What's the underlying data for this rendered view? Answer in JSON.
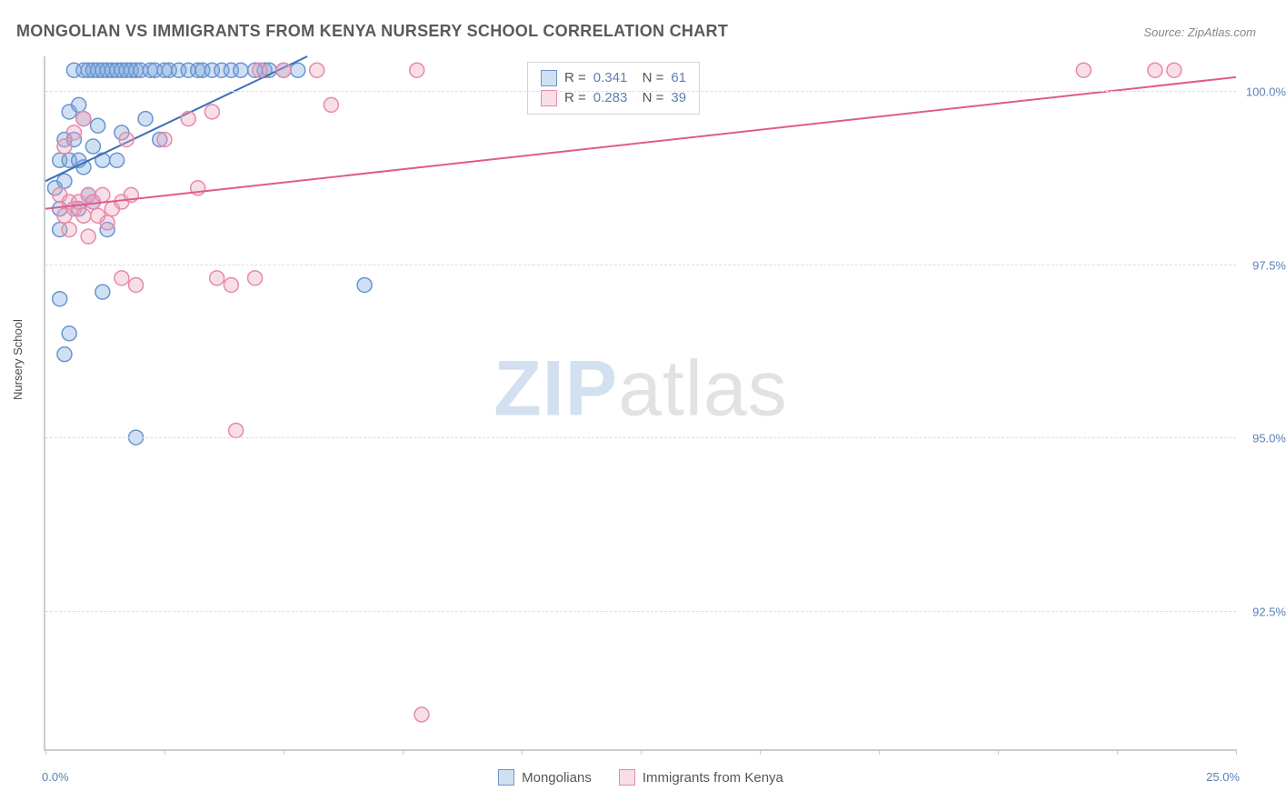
{
  "title": "MONGOLIAN VS IMMIGRANTS FROM KENYA NURSERY SCHOOL CORRELATION CHART",
  "source": "Source: ZipAtlas.com",
  "watermark": {
    "zip": "ZIP",
    "atlas": "atlas"
  },
  "chart": {
    "type": "scatter",
    "background_color": "#ffffff",
    "grid_color": "#dadde2",
    "axis_color": "#c7ccd4",
    "y_axis_title": "Nursery School",
    "title_fontsize": 18,
    "label_fontsize": 13,
    "xlim": [
      0.0,
      25.0
    ],
    "ylim": [
      90.5,
      100.5
    ],
    "x_ticks": [
      0.0,
      2.5,
      5.0,
      7.5,
      10.0,
      12.5,
      15.0,
      17.5,
      20.0,
      22.5,
      25.0
    ],
    "x_tick_labels": {
      "start": "0.0%",
      "end": "25.0%"
    },
    "y_ticks": [
      92.5,
      95.0,
      97.5,
      100.0
    ],
    "y_tick_labels": [
      "92.5%",
      "95.0%",
      "97.5%",
      "100.0%"
    ],
    "marker_radius": 8,
    "marker_stroke_width": 1.5,
    "line_width": 2,
    "series": [
      {
        "name": "Mongolians",
        "color_fill": "rgba(120,165,220,0.35)",
        "color_stroke": "#6a94cf",
        "line_color": "#3b6fb8",
        "R": "0.341",
        "N": "61",
        "regression": {
          "x1": 0.0,
          "y1": 98.7,
          "x2": 5.5,
          "y2": 100.5
        },
        "points": [
          [
            0.2,
            98.6
          ],
          [
            0.3,
            99.0
          ],
          [
            0.3,
            98.3
          ],
          [
            0.4,
            99.3
          ],
          [
            0.4,
            98.7
          ],
          [
            0.5,
            99.7
          ],
          [
            0.5,
            99.0
          ],
          [
            0.6,
            100.3
          ],
          [
            0.6,
            99.3
          ],
          [
            0.7,
            99.0
          ],
          [
            0.7,
            98.3
          ],
          [
            0.8,
            100.3
          ],
          [
            0.8,
            99.6
          ],
          [
            0.9,
            100.3
          ],
          [
            0.9,
            98.5
          ],
          [
            1.0,
            100.3
          ],
          [
            1.0,
            99.2
          ],
          [
            1.1,
            100.3
          ],
          [
            1.1,
            99.5
          ],
          [
            1.2,
            100.3
          ],
          [
            1.2,
            99.0
          ],
          [
            1.3,
            100.3
          ],
          [
            1.3,
            98.0
          ],
          [
            1.4,
            100.3
          ],
          [
            1.5,
            100.3
          ],
          [
            1.5,
            99.0
          ],
          [
            1.6,
            100.3
          ],
          [
            1.6,
            99.4
          ],
          [
            1.7,
            100.3
          ],
          [
            1.8,
            100.3
          ],
          [
            1.9,
            100.3
          ],
          [
            2.0,
            100.3
          ],
          [
            2.1,
            99.6
          ],
          [
            2.2,
            100.3
          ],
          [
            2.3,
            100.3
          ],
          [
            2.4,
            99.3
          ],
          [
            2.5,
            100.3
          ],
          [
            2.6,
            100.3
          ],
          [
            2.8,
            100.3
          ],
          [
            3.0,
            100.3
          ],
          [
            3.2,
            100.3
          ],
          [
            3.3,
            100.3
          ],
          [
            3.5,
            100.3
          ],
          [
            3.7,
            100.3
          ],
          [
            3.9,
            100.3
          ],
          [
            4.1,
            100.3
          ],
          [
            4.4,
            100.3
          ],
          [
            4.6,
            100.3
          ],
          [
            4.7,
            100.3
          ],
          [
            5.0,
            100.3
          ],
          [
            5.3,
            100.3
          ],
          [
            0.3,
            97.0
          ],
          [
            0.5,
            96.5
          ],
          [
            0.4,
            96.2
          ],
          [
            0.3,
            98.0
          ],
          [
            1.2,
            97.1
          ],
          [
            1.9,
            95.0
          ],
          [
            6.7,
            97.2
          ],
          [
            0.7,
            99.8
          ],
          [
            0.8,
            98.9
          ],
          [
            1.0,
            98.4
          ]
        ]
      },
      {
        "name": "Immigrants from Kenya",
        "color_fill": "rgba(235,160,185,0.35)",
        "color_stroke": "#e68aa8",
        "line_color": "#e05a8c",
        "R": "0.283",
        "N": "39",
        "regression": {
          "x1": 0.0,
          "y1": 98.3,
          "x2": 25.0,
          "y2": 100.2
        },
        "points": [
          [
            0.3,
            98.5
          ],
          [
            0.4,
            98.2
          ],
          [
            0.5,
            98.4
          ],
          [
            0.6,
            98.3
          ],
          [
            0.7,
            98.4
          ],
          [
            0.8,
            98.2
          ],
          [
            0.9,
            98.5
          ],
          [
            1.0,
            98.4
          ],
          [
            1.1,
            98.2
          ],
          [
            1.2,
            98.5
          ],
          [
            1.3,
            98.1
          ],
          [
            1.4,
            98.3
          ],
          [
            1.6,
            98.4
          ],
          [
            1.8,
            98.5
          ],
          [
            0.4,
            99.2
          ],
          [
            0.6,
            99.4
          ],
          [
            0.8,
            99.6
          ],
          [
            1.7,
            99.3
          ],
          [
            2.5,
            99.3
          ],
          [
            3.0,
            99.6
          ],
          [
            3.5,
            99.7
          ],
          [
            4.5,
            100.3
          ],
          [
            5.0,
            100.3
          ],
          [
            5.7,
            100.3
          ],
          [
            6.0,
            99.8
          ],
          [
            7.8,
            100.3
          ],
          [
            1.6,
            97.3
          ],
          [
            1.9,
            97.2
          ],
          [
            3.6,
            97.3
          ],
          [
            3.9,
            97.2
          ],
          [
            4.4,
            97.3
          ],
          [
            4.0,
            95.1
          ],
          [
            3.2,
            98.6
          ],
          [
            7.9,
            91.0
          ],
          [
            21.8,
            100.3
          ],
          [
            23.3,
            100.3
          ],
          [
            23.7,
            100.3
          ],
          [
            0.5,
            98.0
          ],
          [
            0.9,
            97.9
          ]
        ]
      }
    ],
    "legend_bottom": [
      {
        "label": "Mongolians",
        "fill": "rgba(120,165,220,0.35)",
        "stroke": "#6a94cf"
      },
      {
        "label": "Immigrants from Kenya",
        "fill": "rgba(235,160,185,0.35)",
        "stroke": "#e68aa8"
      }
    ]
  }
}
